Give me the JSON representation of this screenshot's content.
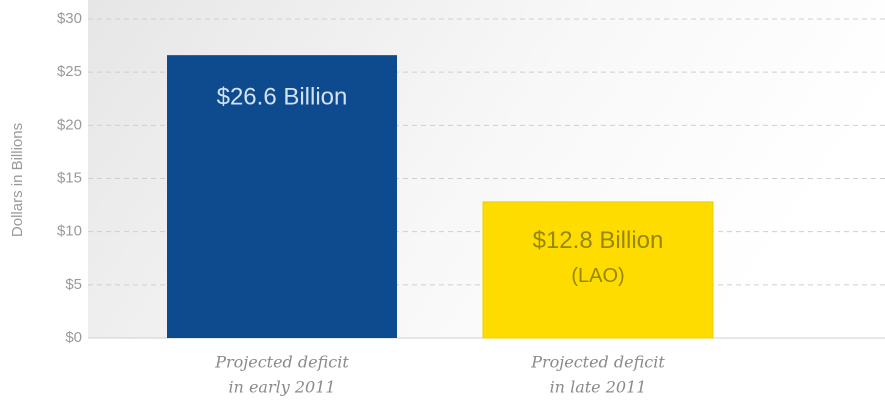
{
  "chart_data": {
    "type": "bar",
    "y_axis_label": "Dollars in Billions",
    "categories": [
      [
        "Projected deficit",
        "in early 2011"
      ],
      [
        "Projected deficit",
        "in late 2011"
      ]
    ],
    "values": [
      26.6,
      12.8
    ],
    "value_labels": [
      "$26.6 Billion",
      "$12.8 Billion"
    ],
    "colors": [
      "#0e4a8e",
      "#ffdc00"
    ],
    "label_colors": [
      "#d3e2f4",
      "#978700"
    ],
    "annotations": [
      {
        "bar": 1,
        "text": "(LAO)"
      }
    ],
    "ylim": [
      0,
      30
    ],
    "yticks": [
      {
        "value": 0,
        "label": "$0"
      },
      {
        "value": 5,
        "label": "$5"
      },
      {
        "value": 10,
        "label": "$10"
      },
      {
        "value": 15,
        "label": "$15"
      },
      {
        "value": 20,
        "label": "$20"
      },
      {
        "value": 25,
        "label": "$25"
      },
      {
        "value": 30,
        "label": "$30"
      }
    ],
    "grid": true
  }
}
